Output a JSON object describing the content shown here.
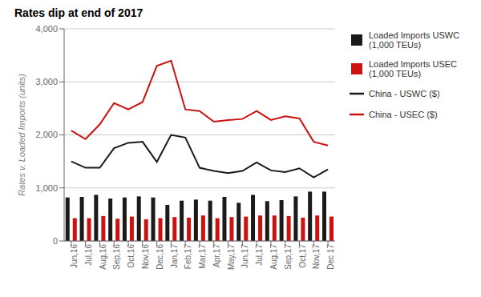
{
  "chart_data": {
    "type": "bar",
    "title": "Rates dip at end of 2017",
    "ylabel": "Rates v. Loaded Imports (units)",
    "categories": [
      "Jun,16",
      "Jul,16",
      "Aug,16",
      "Sep,16",
      "Oct,16",
      "Nov,16",
      "Dec,16",
      "Jan,17",
      "Feb,17",
      "Mar,17",
      "Apr,17",
      "May,17",
      "Jun,17",
      "Jul,17",
      "Aug,17",
      "Sep,17",
      "Oct,17",
      "Nov,17",
      "Dec 17"
    ],
    "series": [
      {
        "name": "Loaded Imports USWC\n(1,000 TEUs)",
        "type": "bar",
        "color": "#1a1a1a",
        "values": [
          820,
          830,
          870,
          800,
          820,
          840,
          820,
          680,
          760,
          780,
          760,
          830,
          720,
          870,
          750,
          770,
          840,
          930,
          930
        ]
      },
      {
        "name": "Loaded Imports USEC\n(1,000 TEUs)",
        "type": "bar",
        "color": "#cc1111",
        "values": [
          430,
          430,
          470,
          420,
          460,
          410,
          430,
          450,
          440,
          480,
          430,
          450,
          460,
          480,
          480,
          470,
          440,
          480,
          460
        ]
      },
      {
        "name": "China - USWC ($)",
        "type": "line",
        "color": "#1a1a1a",
        "values": [
          1500,
          1380,
          1380,
          1750,
          1850,
          1870,
          1490,
          2000,
          1950,
          1380,
          1320,
          1280,
          1320,
          1480,
          1330,
          1300,
          1370,
          1200,
          1350
        ]
      },
      {
        "name": "China - USEC ($)",
        "type": "line",
        "color": "#cc1111",
        "values": [
          2080,
          1920,
          2200,
          2600,
          2480,
          2620,
          3300,
          3400,
          2480,
          2450,
          2250,
          2280,
          2300,
          2450,
          2280,
          2350,
          2310,
          1870,
          1800
        ]
      }
    ],
    "ylim": [
      0,
      4000
    ],
    "yticks": [
      0,
      {
        "value": 1000,
        "label": "1,000"
      },
      {
        "value": 2000,
        "label": "2,000"
      },
      {
        "value": 3000,
        "label": "3,000"
      },
      {
        "value": 4000,
        "label": "4,000"
      }
    ],
    "grid": true,
    "legend": "right"
  }
}
